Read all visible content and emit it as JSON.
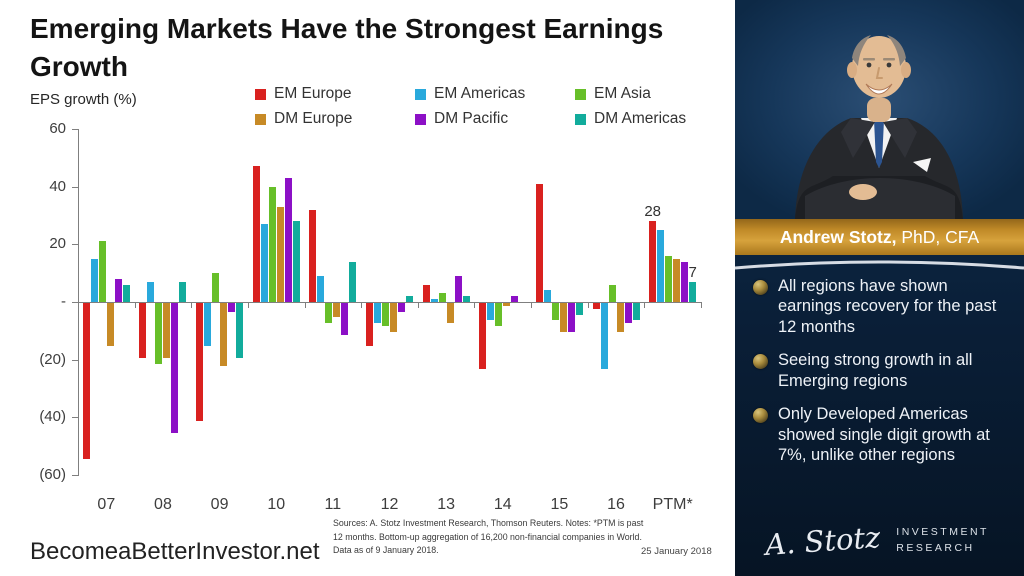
{
  "title": "Emerging Markets Have the Strongest Earnings Growth",
  "axis_label": "EPS growth (%)",
  "chart_data": {
    "type": "bar",
    "title": "Emerging Markets Have the Strongest Earnings Growth",
    "ylabel": "EPS growth (%)",
    "ylim": [
      -60,
      60
    ],
    "yticks": [
      "60",
      "40",
      "20",
      "-",
      "(20)",
      "(40)",
      "(60)"
    ],
    "grid": false,
    "legend_position": "top",
    "categories": [
      "07",
      "08",
      "09",
      "10",
      "11",
      "12",
      "13",
      "14",
      "15",
      "16",
      "PTM*"
    ],
    "series": [
      {
        "name": "EM Europe",
        "color": "#d9211f",
        "values": [
          -54,
          -19,
          -41,
          47,
          32,
          -15,
          6,
          -23,
          41,
          -2,
          28
        ]
      },
      {
        "name": "EM Americas",
        "color": "#29a9dc",
        "values": [
          15,
          7,
          -15,
          27,
          9,
          -7,
          1,
          -6,
          4,
          -23,
          25
        ]
      },
      {
        "name": "EM Asia",
        "color": "#67bf29",
        "values": [
          21,
          -21,
          10,
          40,
          -7,
          -8,
          3,
          -8,
          -6,
          6,
          16
        ]
      },
      {
        "name": "DM Europe",
        "color": "#c78a26",
        "values": [
          -15,
          -19,
          -22,
          33,
          -5,
          -10,
          -7,
          -1,
          -10,
          -10,
          15
        ]
      },
      {
        "name": "DM Pacific",
        "color": "#8c10c6",
        "values": [
          8,
          -45,
          -3,
          43,
          -11,
          -3,
          9,
          2,
          -10,
          -7,
          14
        ]
      },
      {
        "name": "DM Americas",
        "color": "#12ac9c",
        "values": [
          6,
          7,
          -19,
          28,
          14,
          2,
          2,
          0,
          -4,
          -6,
          7
        ]
      }
    ],
    "annotations": [
      {
        "category": "PTM*",
        "series": "EM Europe",
        "text": "28"
      },
      {
        "category": "PTM*",
        "series": "DM Americas",
        "text": "7"
      }
    ]
  },
  "footer": {
    "brand": "BecomeaBetterInvestor.net",
    "sources": "Sources: A. Stotz Investment Research, Thomson Reuters. Notes: *PTM is past 12 months. Bottom-up aggregation of 16,200 non-financial companies in World. Data as of 9 January 2018.",
    "date": "25 January 2018"
  },
  "sidebar": {
    "banner_name": "Andrew Stotz,",
    "banner_suffix": " PhD, CFA",
    "bullets": [
      "All regions have shown earnings recovery for the past 12 months",
      "Seeing strong growth in all Emerging regions",
      "Only Developed Americas showed single digit growth at 7%, unlike other regions"
    ],
    "logo_script": "A. Stotz",
    "logo_line1": "INVESTMENT",
    "logo_line2": "RESEARCH"
  },
  "colors": {
    "sidebar_navy": "#0d2946",
    "banner_gold": "#c08a28",
    "axis_gray": "#7f7f7f"
  }
}
